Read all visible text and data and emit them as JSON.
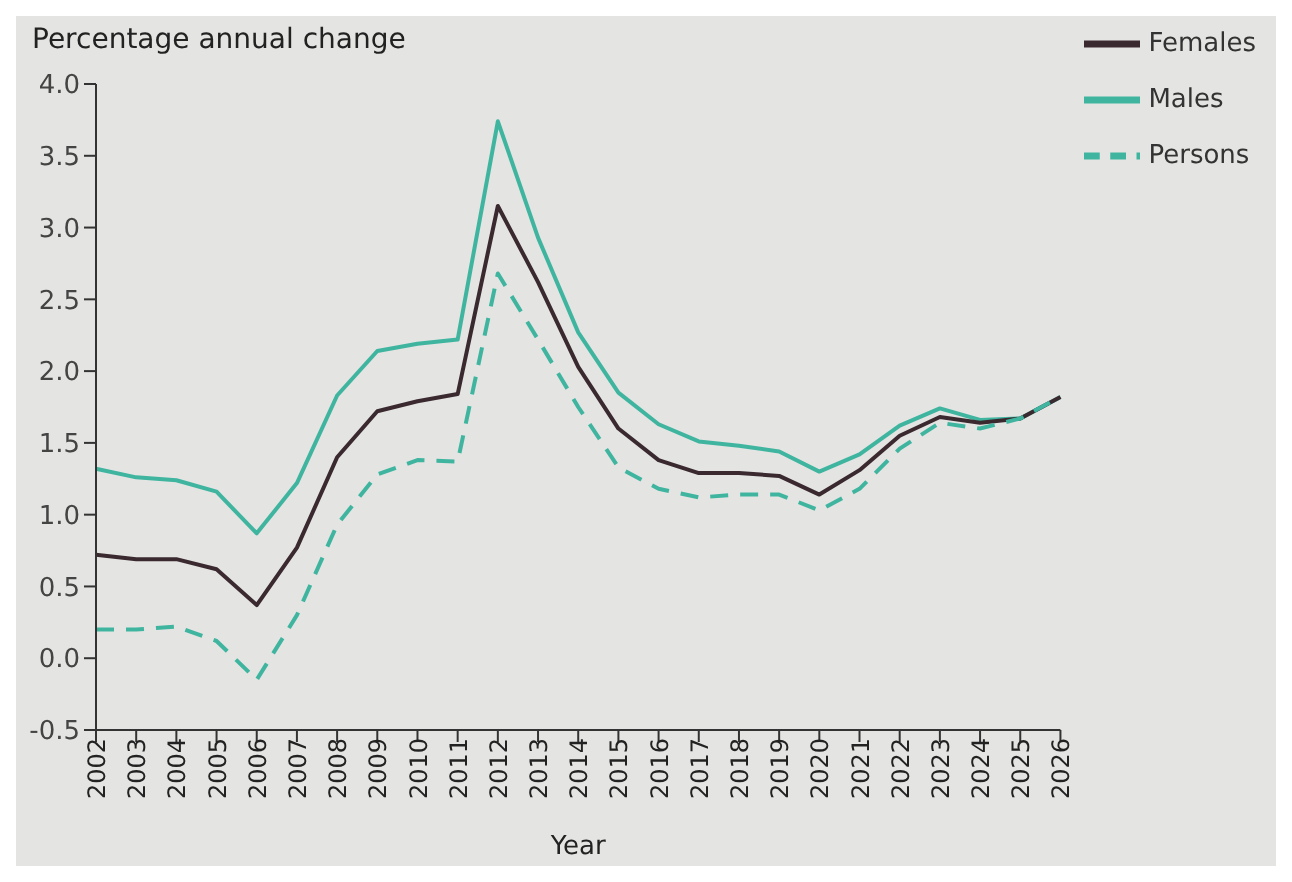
{
  "chart_data": {
    "type": "line",
    "ylabel": "Percentage annual change",
    "xlabel": "Year",
    "categories": [
      "2002",
      "2003",
      "2004",
      "2005",
      "2006",
      "2007",
      "2008",
      "2009",
      "2010",
      "2011",
      "2012",
      "2013",
      "2014",
      "2015",
      "2016",
      "2017",
      "2018",
      "2019",
      "2020",
      "2021",
      "2022",
      "2023",
      "2024",
      "2025",
      "2026"
    ],
    "series": [
      {
        "name": "Males",
        "color": "#3fb5a0",
        "line_style": "solid",
        "values": [
          1.32,
          1.26,
          1.24,
          1.16,
          0.87,
          1.22,
          1.83,
          2.14,
          2.19,
          2.22,
          3.74,
          2.93,
          2.27,
          1.85,
          1.63,
          1.51,
          1.48,
          1.44,
          1.3,
          1.42,
          1.62,
          1.74,
          1.66,
          1.67,
          1.82
        ]
      },
      {
        "name": "Females",
        "color": "#3a2a30",
        "line_style": "solid",
        "values": [
          0.72,
          0.69,
          0.69,
          0.62,
          0.37,
          0.77,
          1.4,
          1.72,
          1.79,
          1.84,
          3.15,
          2.62,
          2.03,
          1.6,
          1.38,
          1.29,
          1.29,
          1.27,
          1.14,
          1.31,
          1.55,
          1.68,
          1.64,
          1.67,
          1.82
        ]
      },
      {
        "name": "Persons",
        "color": "#3fb5a0",
        "line_style": "dashed",
        "values": [
          0.2,
          0.2,
          0.22,
          0.12,
          -0.15,
          0.3,
          0.93,
          1.28,
          1.38,
          1.37,
          2.68,
          2.22,
          1.75,
          1.33,
          1.18,
          1.12,
          1.14,
          1.14,
          1.03,
          1.18,
          1.46,
          1.64,
          1.6,
          1.67,
          1.82
        ]
      }
    ],
    "ylim": [
      -0.5,
      4.0
    ],
    "yticks": [
      {
        "value": -0.5,
        "label": "-0.5"
      },
      {
        "value": 0,
        "label": "0.0"
      },
      {
        "value": 0.5,
        "label": "0.5"
      },
      {
        "value": 1,
        "label": "1.0"
      },
      {
        "value": 1.5,
        "label": "1.5"
      },
      {
        "value": 2,
        "label": "2.0"
      },
      {
        "value": 2.5,
        "label": "2.5"
      },
      {
        "value": 3,
        "label": "3.0"
      },
      {
        "value": 3.5,
        "label": "3.5"
      },
      {
        "value": 4,
        "label": "4.0"
      }
    ],
    "grid": false,
    "legend": "top right",
    "marker": "none"
  }
}
